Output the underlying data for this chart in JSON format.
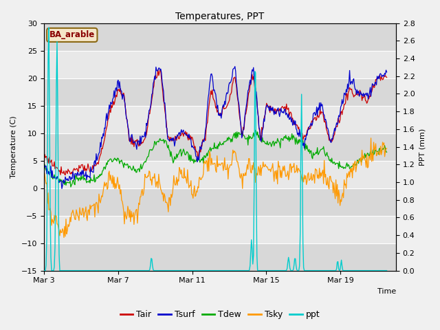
{
  "title": "Temperatures, PPT",
  "ylabel_left": "Temperature (C)",
  "ylabel_right": "PPT (mm)",
  "annotation": "BA_arable",
  "ylim_left": [
    -15,
    30
  ],
  "ylim_right": [
    0.0,
    2.8
  ],
  "yticks_left": [
    -15,
    -10,
    -5,
    0,
    5,
    10,
    15,
    20,
    25,
    30
  ],
  "yticks_right": [
    0.0,
    0.2,
    0.4,
    0.6,
    0.8,
    1.0,
    1.2,
    1.4,
    1.6,
    1.8,
    2.0,
    2.2,
    2.4,
    2.6,
    2.8
  ],
  "xlim": [
    0,
    19
  ],
  "xtick_positions": [
    0,
    4,
    8,
    12,
    16
  ],
  "xtick_labels": [
    "Mar 3",
    "Mar 7",
    "Mar 11",
    "Mar 15",
    "Mar 19"
  ],
  "colors": {
    "Tair": "#cc0000",
    "Tsurf": "#0000cc",
    "Tdew": "#00aa00",
    "Tsky": "#ff9900",
    "ppt": "#00cccc"
  },
  "legend_labels": [
    "Tair",
    "Tsurf",
    "Tdew",
    "Tsky",
    "ppt"
  ],
  "bg_color": "#f0f0f0",
  "plot_bg": "#e8e8e8",
  "stripe_light": "#e8e8e8",
  "stripe_dark": "#d8d8d8",
  "grid_color": "#ffffff"
}
